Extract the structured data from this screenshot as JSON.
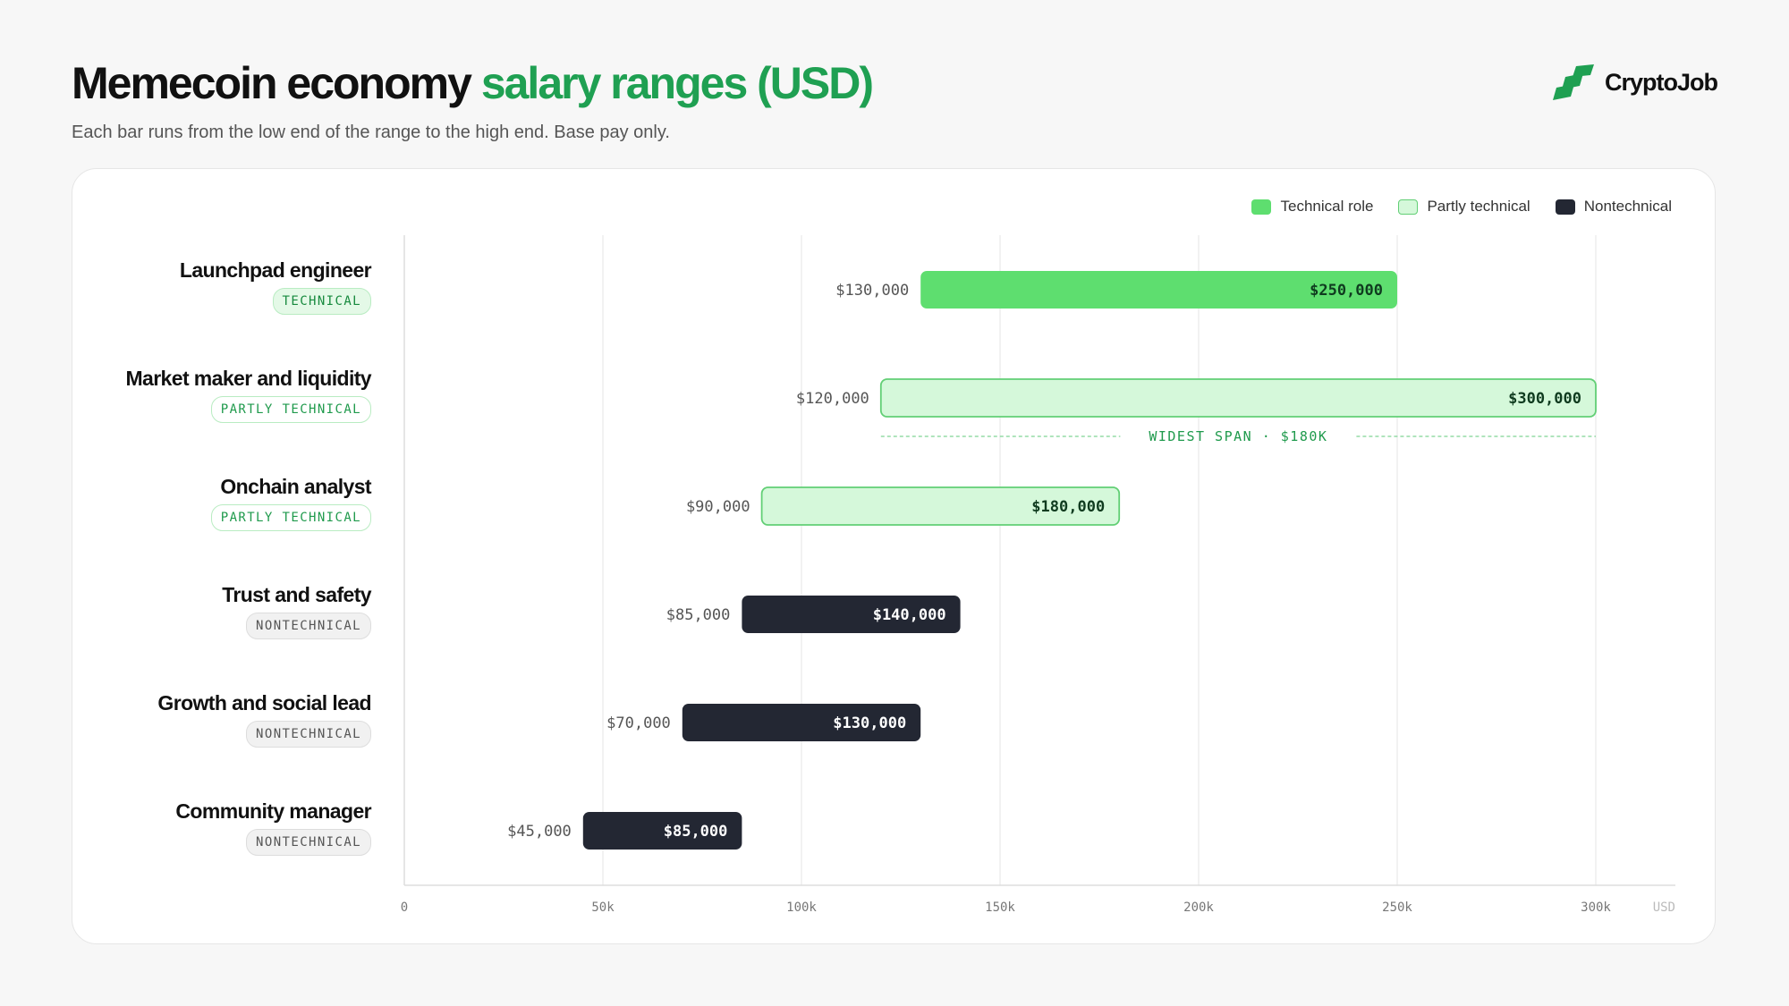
{
  "header": {
    "title_main": "Memecoin economy",
    "title_accent": "salary ranges (USD)",
    "subtitle": "Each bar runs from the low end of the range to the high end. Base pay only."
  },
  "brand": {
    "name": "CryptoJob",
    "logo_icon": "stacked-bars-logo-icon"
  },
  "colors": {
    "technical": "#5ede6f",
    "partly_fill": "#d5f8da",
    "partly_border": "#62cf75",
    "nontechnical": "#232733",
    "accent": "#1fa052"
  },
  "legend": [
    {
      "label": "Technical role",
      "category": "technical"
    },
    {
      "label": "Partly technical",
      "category": "partly"
    },
    {
      "label": "Nontechnical",
      "category": "non"
    }
  ],
  "chart_data": {
    "type": "bar",
    "orientation": "horizontal-range",
    "unit": "USD",
    "xlim": [
      0,
      320000
    ],
    "xticks": [
      0,
      50000,
      100000,
      150000,
      200000,
      250000,
      300000
    ],
    "xtick_labels": [
      "0",
      "50k",
      "100k",
      "150k",
      "200k",
      "250k",
      "300k"
    ],
    "grid": true,
    "legend_position": "top-right",
    "rows": [
      {
        "role": "Launchpad engineer",
        "badge": "TECHNICAL",
        "category": "technical",
        "low": 130000,
        "high": 250000,
        "low_label": "$130,000",
        "high_label": "$250,000"
      },
      {
        "role": "Market maker and liquidity",
        "badge": "PARTLY TECHNICAL",
        "category": "partly",
        "low": 120000,
        "high": 300000,
        "low_label": "$120,000",
        "high_label": "$300,000",
        "annotation": "WIDEST SPAN · $180K"
      },
      {
        "role": "Onchain analyst",
        "badge": "PARTLY TECHNICAL",
        "category": "partly",
        "low": 90000,
        "high": 180000,
        "low_label": "$90,000",
        "high_label": "$180,000"
      },
      {
        "role": "Trust and safety",
        "badge": "NONTECHNICAL",
        "category": "non",
        "low": 85000,
        "high": 140000,
        "low_label": "$85,000",
        "high_label": "$140,000"
      },
      {
        "role": "Growth and social lead",
        "badge": "NONTECHNICAL",
        "category": "non",
        "low": 70000,
        "high": 130000,
        "low_label": "$70,000",
        "high_label": "$130,000"
      },
      {
        "role": "Community manager",
        "badge": "NONTECHNICAL",
        "category": "non",
        "low": 45000,
        "high": 85000,
        "low_label": "$45,000",
        "high_label": "$85,000"
      }
    ]
  }
}
